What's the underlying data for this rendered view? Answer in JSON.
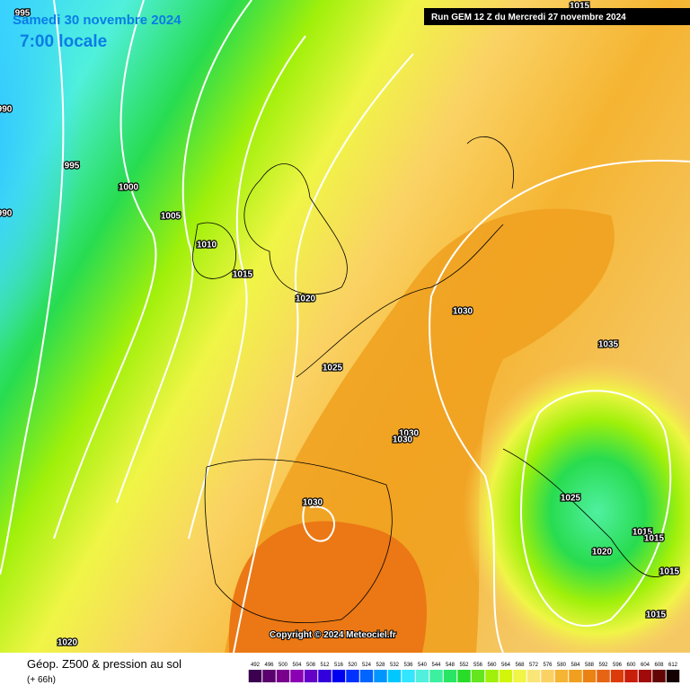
{
  "header": {
    "date": "Samedi 30 novembre 2024",
    "time": "7:00 locale",
    "run": "Run GEM 12 Z du Mercredi 27 novembre 2024"
  },
  "isobar_labels": [
    "995",
    "990",
    "995",
    "1000",
    "1005",
    "990",
    "1010",
    "1015",
    "1020",
    "1015",
    "1030",
    "1025",
    "1035",
    "1030",
    "1030",
    "1030",
    "1025",
    "1020",
    "1015",
    "1015",
    "1015",
    "1015",
    "1020"
  ],
  "copyright": "Copyright © 2024 Meteociel.fr",
  "footer": {
    "title": "Géop. Z500 & pression au sol",
    "subtitle": "(+ 66h)"
  },
  "colorbar": {
    "ticks": [
      492,
      496,
      500,
      504,
      508,
      512,
      516,
      520,
      524,
      528,
      532,
      536,
      540,
      544,
      548,
      552,
      556,
      560,
      564,
      568,
      572,
      576,
      580,
      584,
      588,
      592,
      596,
      600,
      604,
      608,
      612
    ],
    "colors": [
      "#3c0050",
      "#5a006e",
      "#78008c",
      "#8c00b4",
      "#6400c8",
      "#3200dc",
      "#0000f0",
      "#0032ff",
      "#0064ff",
      "#0096ff",
      "#00c8ff",
      "#32e6ff",
      "#50f0dc",
      "#3cf0a0",
      "#28e664",
      "#28dc28",
      "#64e61e",
      "#a0f00a",
      "#d2f50a",
      "#f0f546",
      "#fae678",
      "#fad264",
      "#f5b432",
      "#f0a01e",
      "#eb8214",
      "#e66414",
      "#dc3c0a",
      "#c81e0a",
      "#a00a0a",
      "#640505",
      "#140000"
    ]
  }
}
